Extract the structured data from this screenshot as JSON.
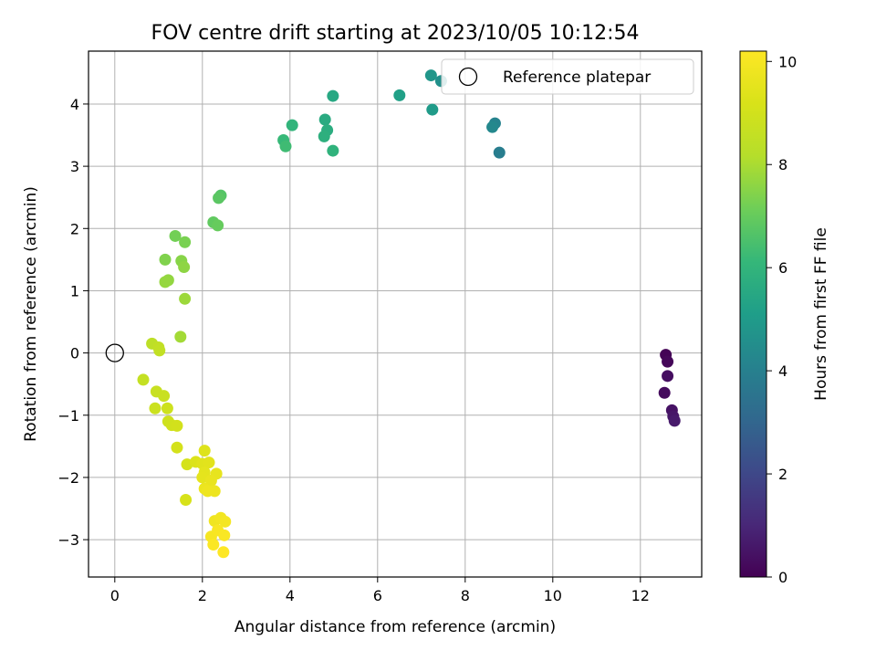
{
  "chart_data": {
    "type": "scatter",
    "title": "FOV centre drift starting at 2023/10/05 10:12:54",
    "xlabel": "Angular distance from reference (arcmin)",
    "ylabel": "Rotation from reference (arcmin)",
    "xlim": [
      -0.6,
      13.4
    ],
    "ylim": [
      -3.6,
      4.85
    ],
    "xticks": [
      0,
      2,
      4,
      6,
      8,
      10,
      12
    ],
    "yticks": [
      -3,
      -2,
      -1,
      0,
      1,
      2,
      3,
      4
    ],
    "grid": true,
    "legend": {
      "position": "top-right",
      "entries": [
        "Reference platepar"
      ]
    },
    "reference_point": {
      "label": "Reference platepar",
      "x": 0,
      "y": 0,
      "marker": "open-circle"
    },
    "colorbar": {
      "label": "Hours from first FF file",
      "colormap": "viridis",
      "range": [
        0,
        10.2
      ],
      "ticks": [
        0,
        2,
        4,
        6,
        8,
        10
      ]
    },
    "series": [
      {
        "points": [
          {
            "x": 12.58,
            "y": -0.03,
            "c": 0.05
          },
          {
            "x": 12.62,
            "y": -0.14,
            "c": 0.15
          },
          {
            "x": 12.55,
            "y": -0.64,
            "c": 0.25
          },
          {
            "x": 12.62,
            "y": -0.37,
            "c": 0.35
          },
          {
            "x": 12.72,
            "y": -0.92,
            "c": 0.45
          },
          {
            "x": 12.75,
            "y": -1.02,
            "c": 0.55
          },
          {
            "x": 12.78,
            "y": -1.09,
            "c": 0.65
          },
          {
            "x": 8.78,
            "y": 3.22,
            "c": 3.9
          },
          {
            "x": 8.68,
            "y": 3.69,
            "c": 4.1
          },
          {
            "x": 8.62,
            "y": 3.63,
            "c": 4.3
          },
          {
            "x": 7.45,
            "y": 4.37,
            "c": 4.6
          },
          {
            "x": 7.22,
            "y": 4.46,
            "c": 4.8
          },
          {
            "x": 7.25,
            "y": 3.91,
            "c": 5.0
          },
          {
            "x": 6.5,
            "y": 4.14,
            "c": 5.2
          },
          {
            "x": 4.98,
            "y": 4.13,
            "c": 5.5
          },
          {
            "x": 4.8,
            "y": 3.75,
            "c": 5.6
          },
          {
            "x": 4.85,
            "y": 3.58,
            "c": 5.7
          },
          {
            "x": 4.78,
            "y": 3.48,
            "c": 5.8
          },
          {
            "x": 4.98,
            "y": 3.25,
            "c": 5.9
          },
          {
            "x": 4.05,
            "y": 3.66,
            "c": 6.0
          },
          {
            "x": 3.85,
            "y": 3.42,
            "c": 6.15
          },
          {
            "x": 3.9,
            "y": 3.32,
            "c": 6.3
          },
          {
            "x": 2.42,
            "y": 2.53,
            "c": 6.7
          },
          {
            "x": 2.37,
            "y": 2.49,
            "c": 6.8
          },
          {
            "x": 2.25,
            "y": 2.1,
            "c": 6.9
          },
          {
            "x": 2.35,
            "y": 2.05,
            "c": 7.0
          },
          {
            "x": 1.38,
            "y": 1.88,
            "c": 7.2
          },
          {
            "x": 1.6,
            "y": 1.78,
            "c": 7.3
          },
          {
            "x": 1.15,
            "y": 1.5,
            "c": 7.4
          },
          {
            "x": 1.52,
            "y": 1.48,
            "c": 7.5
          },
          {
            "x": 1.58,
            "y": 1.38,
            "c": 7.6
          },
          {
            "x": 1.22,
            "y": 1.17,
            "c": 7.65
          },
          {
            "x": 1.15,
            "y": 1.14,
            "c": 7.7
          },
          {
            "x": 1.6,
            "y": 0.87,
            "c": 7.8
          },
          {
            "x": 1.5,
            "y": 0.26,
            "c": 7.9
          },
          {
            "x": 0.85,
            "y": 0.15,
            "c": 8.4
          },
          {
            "x": 1.0,
            "y": 0.09,
            "c": 8.5
          },
          {
            "x": 1.02,
            "y": 0.04,
            "c": 8.55
          },
          {
            "x": 0.65,
            "y": -0.43,
            "c": 8.6
          },
          {
            "x": 0.95,
            "y": -0.62,
            "c": 8.7
          },
          {
            "x": 1.12,
            "y": -0.69,
            "c": 8.75
          },
          {
            "x": 0.92,
            "y": -0.89,
            "c": 8.8
          },
          {
            "x": 1.2,
            "y": -0.89,
            "c": 8.85
          },
          {
            "x": 1.22,
            "y": -1.1,
            "c": 8.9
          },
          {
            "x": 1.3,
            "y": -1.16,
            "c": 8.95
          },
          {
            "x": 1.42,
            "y": -1.17,
            "c": 9.0
          },
          {
            "x": 1.42,
            "y": -1.52,
            "c": 9.05
          },
          {
            "x": 1.65,
            "y": -1.79,
            "c": 9.1
          },
          {
            "x": 1.62,
            "y": -2.36,
            "c": 9.15
          },
          {
            "x": 1.85,
            "y": -1.75,
            "c": 9.3
          },
          {
            "x": 2.05,
            "y": -1.57,
            "c": 9.35
          },
          {
            "x": 2.0,
            "y": -1.78,
            "c": 9.4
          },
          {
            "x": 2.15,
            "y": -1.76,
            "c": 9.45
          },
          {
            "x": 2.05,
            "y": -1.92,
            "c": 9.5
          },
          {
            "x": 2.0,
            "y": -2.0,
            "c": 9.55
          },
          {
            "x": 2.32,
            "y": -1.94,
            "c": 9.6
          },
          {
            "x": 2.2,
            "y": -2.05,
            "c": 9.65
          },
          {
            "x": 2.05,
            "y": -2.18,
            "c": 9.7
          },
          {
            "x": 2.28,
            "y": -2.22,
            "c": 9.75
          },
          {
            "x": 2.12,
            "y": -2.22,
            "c": 9.8
          },
          {
            "x": 2.28,
            "y": -2.7,
            "c": 9.85
          },
          {
            "x": 2.42,
            "y": -2.65,
            "c": 9.9
          },
          {
            "x": 2.52,
            "y": -2.71,
            "c": 9.95
          },
          {
            "x": 2.2,
            "y": -2.95,
            "c": 10.0
          },
          {
            "x": 2.35,
            "y": -2.85,
            "c": 10.05
          },
          {
            "x": 2.5,
            "y": -2.93,
            "c": 10.1
          },
          {
            "x": 2.25,
            "y": -3.08,
            "c": 10.15
          },
          {
            "x": 2.48,
            "y": -3.2,
            "c": 10.2
          }
        ]
      }
    ]
  }
}
